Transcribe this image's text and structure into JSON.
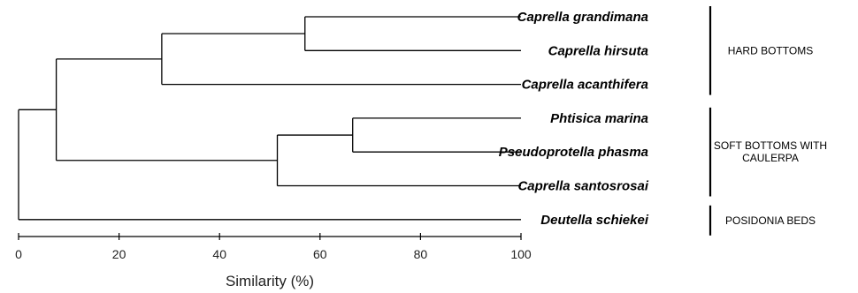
{
  "dendrogram": {
    "leaves": [
      "Caprella grandimana",
      "Caprella hirsuta",
      "Caprella acanthifera",
      "Phtisica marina",
      "Pseudoprotella phasma",
      "Caprella santosrosai",
      "Deutella schiekei"
    ],
    "merges": [
      {
        "members": [
          "Caprella grandimana",
          "Caprella hirsuta"
        ],
        "similarity": 57
      },
      {
        "members": [
          "Phtisica marina",
          "Pseudoprotella phasma"
        ],
        "similarity": 66.5
      },
      {
        "members": [
          "Caprella grandimana",
          "Caprella hirsuta",
          "Caprella acanthifera"
        ],
        "similarity": 28.5
      },
      {
        "members": [
          "Phtisica marina",
          "Pseudoprotella phasma",
          "Caprella santosrosai"
        ],
        "similarity": 51.5
      },
      {
        "members": [
          "Caprella grandimana",
          "Caprella hirsuta",
          "Caprella acanthifera",
          "Phtisica marina",
          "Pseudoprotella phasma",
          "Caprella santosrosai"
        ],
        "similarity": 7.5
      },
      {
        "members": [
          "Caprella grandimana",
          "Caprella hirsuta",
          "Caprella acanthifera",
          "Phtisica marina",
          "Pseudoprotella phasma",
          "Caprella santosrosai",
          "Deutella schiekei"
        ],
        "similarity": 0
      }
    ],
    "axis": {
      "label": "Similarity (%)",
      "range": [
        0,
        100
      ],
      "ticks": [
        "0",
        "20",
        "40",
        "60",
        "80",
        "100"
      ]
    },
    "groups": [
      {
        "lines": [
          "HARD BOTTOMS"
        ],
        "members": [
          "Caprella grandimana",
          "Caprella hirsuta",
          "Caprella acanthifera"
        ]
      },
      {
        "lines": [
          "SOFT BOTTOMS WITH",
          "CAULERPA"
        ],
        "members": [
          "Phtisica marina",
          "Pseudoprotella phasma",
          "Caprella santosrosai"
        ]
      },
      {
        "lines": [
          "POSIDONIA BEDS"
        ],
        "members": [
          "Deutella schiekei"
        ]
      }
    ],
    "colors": {
      "lines": "#000000",
      "text": "#000000"
    }
  }
}
